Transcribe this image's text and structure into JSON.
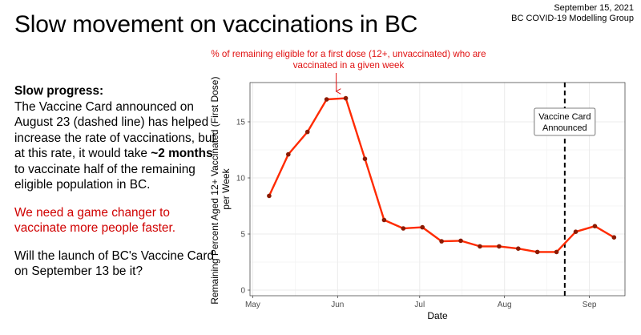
{
  "slide": {
    "title": "Slow movement on vaccinations in BC",
    "date": "September 15, 2021",
    "organization": "BC COVID-19 Modelling Group"
  },
  "text": {
    "heading": "Slow progress:",
    "paragraph1_a": "The Vaccine Card announced on August 23 (dashed line) has helped increase the rate of  vaccinations, but at this rate, it would take ",
    "paragraph1_bold": "~2 months",
    "paragraph1_b": " to vaccinate half of the remaining eligible population in BC.",
    "paragraph2": "We need a game changer to vaccinate more people faster.",
    "paragraph3": "Will the launch of BC's Vaccine Card on September 13 be it?"
  },
  "colors": {
    "line": "#ff2a00",
    "point": "#8b1a00",
    "accent_text": "#e01010",
    "red_text": "#d00000"
  },
  "chart_data": {
    "type": "line",
    "title": "",
    "top_annotation": "% of remaining eligible for a first dose (12+, unvaccinated) who are vaccinated in a given week",
    "xlabel": "Date",
    "ylabel": "Remaining Percent Aged 12+ Vaccinated (First Dose) per Week",
    "x_ticks": [
      "May",
      "Jun",
      "Jul",
      "Aug",
      "Sep"
    ],
    "x_tick_dates": [
      "2021-05-01",
      "2021-06-01",
      "2021-07-01",
      "2021-08-01",
      "2021-09-01"
    ],
    "y_ticks": [
      0,
      5,
      10,
      15
    ],
    "xlim": [
      "2021-04-30",
      "2021-09-14"
    ],
    "ylim": [
      -0.5,
      18.5
    ],
    "grid": true,
    "series": [
      {
        "x": [
          "2021-05-07",
          "2021-05-14",
          "2021-05-21",
          "2021-05-28",
          "2021-06-04",
          "2021-06-11",
          "2021-06-18",
          "2021-06-25",
          "2021-07-02",
          "2021-07-09",
          "2021-07-16",
          "2021-07-23",
          "2021-07-30",
          "2021-08-06",
          "2021-08-13",
          "2021-08-20",
          "2021-08-27",
          "2021-09-03",
          "2021-09-10"
        ],
        "y": [
          8.4,
          12.1,
          14.1,
          17.0,
          17.1,
          11.7,
          6.25,
          5.5,
          5.6,
          4.35,
          4.4,
          3.9,
          3.9,
          3.7,
          3.4,
          3.4,
          5.2,
          5.7,
          4.7
        ]
      }
    ],
    "vline": {
      "date": "2021-08-23",
      "label_line1": "Vaccine Card",
      "label_line2": "Announced"
    }
  }
}
